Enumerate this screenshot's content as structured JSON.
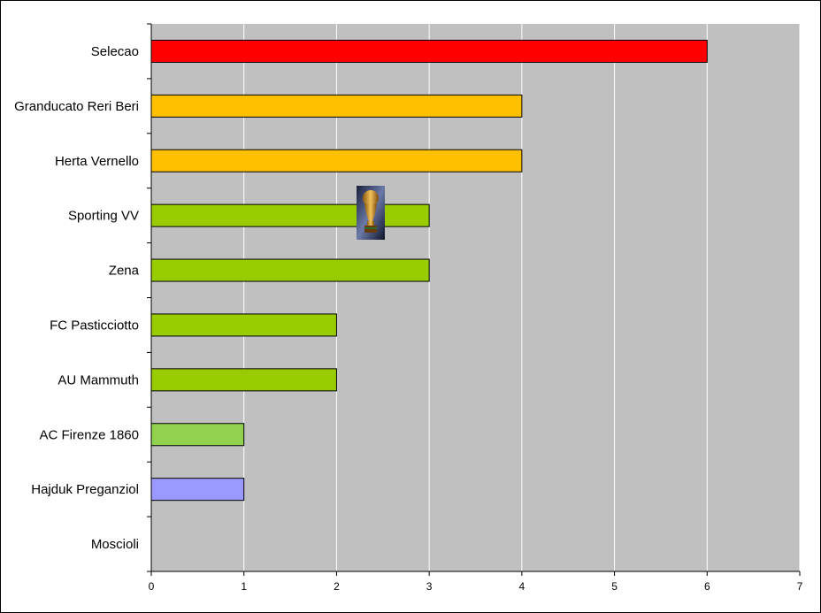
{
  "chart_data": {
    "type": "bar",
    "orientation": "horizontal",
    "categories": [
      "Selecao",
      "Granducato Reri Beri",
      "Herta Vernello",
      "Sporting VV",
      "Zena",
      "FC Pasticciotto",
      "AU Mammuth",
      "AC Firenze 1860",
      "Hajduk Preganziol",
      "Moscioli"
    ],
    "values": [
      6,
      4,
      4,
      3,
      3,
      2,
      2,
      1,
      1,
      0
    ],
    "bar_colors": [
      "#ff0000",
      "#ffc000",
      "#ffc000",
      "#99cc00",
      "#99cc00",
      "#99cc00",
      "#99cc00",
      "#92d050",
      "#9999ff",
      "#9999ff"
    ],
    "xlim": [
      0,
      7
    ],
    "xticks": [
      "0",
      "1",
      "2",
      "3",
      "4",
      "5",
      "6",
      "7"
    ],
    "title": "",
    "xlabel": "",
    "ylabel": "",
    "grid": "vertical",
    "plot_background": "#c0c0c0",
    "gridline_color": "#ffffff",
    "legend": "none",
    "trophy_icon": "world-cup-trophy-icon"
  }
}
